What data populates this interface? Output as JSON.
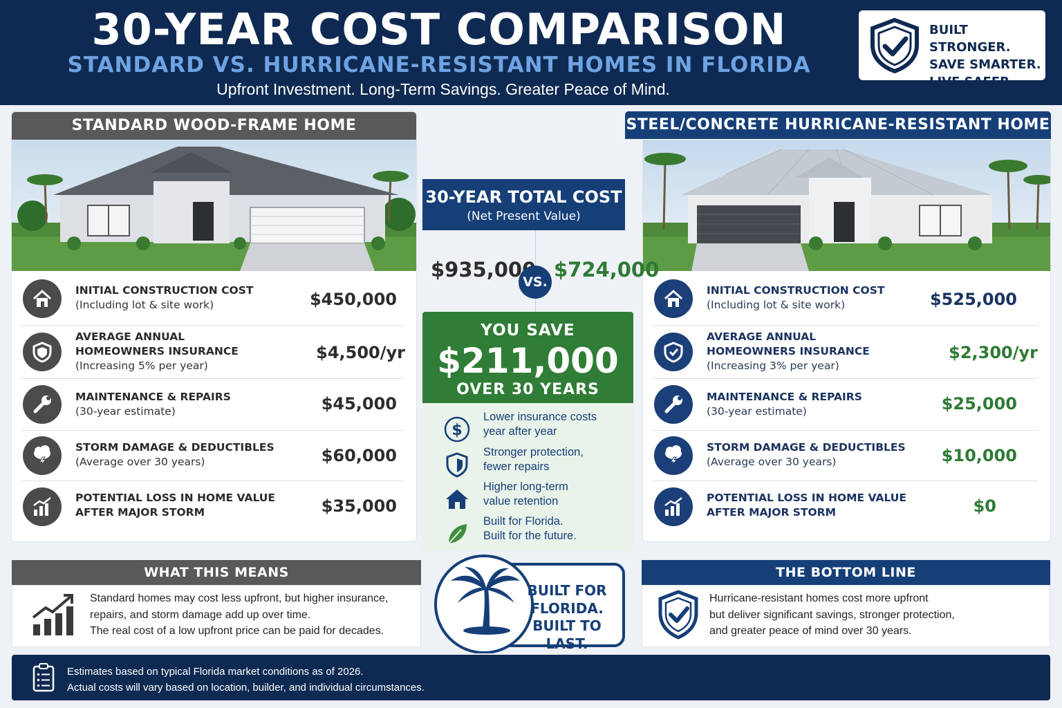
{
  "header": {
    "title": "30-YEAR COST COMPARISON",
    "subtitle": "STANDARD VS. HURRICANE-RESISTANT HOMES IN FLORIDA",
    "tagline": "Upfront Investment. Long-Term Savings.  Greater Peace of Mind.",
    "badge_lines": [
      "BUILT STRONGER.",
      "SAVE SMARTER.",
      "LIVE SAFER."
    ],
    "badge_icon": "shield-check-icon"
  },
  "standard": {
    "heading": "STANDARD WOOD-FRAME HOME",
    "rows": [
      {
        "label": "INITIAL CONSTRUCTION COST",
        "sublabel": "(Including lot & site work)",
        "value": "$450,000",
        "icon": "house-icon"
      },
      {
        "label": "AVERAGE ANNUAL",
        "label2": "HOMEOWNERS INSURANCE",
        "sublabel": "(Increasing 5% per year)",
        "value": "$4,500/yr",
        "icon": "shield-icon"
      },
      {
        "label": "MAINTENANCE & REPAIRS",
        "sublabel": "(30-year estimate)",
        "value": "$45,000",
        "icon": "wrench-icon"
      },
      {
        "label": "STORM DAMAGE & DEDUCTIBLES",
        "sublabel": "(Average over 30 years)",
        "value": "$60,000",
        "icon": "storm-cloud-icon"
      },
      {
        "label": "POTENTIAL LOSS IN HOME VALUE",
        "label2": "AFTER MAJOR STORM",
        "value": "$35,000",
        "icon": "chart-icon"
      }
    ]
  },
  "resistant": {
    "heading": "STEEL/CONCRETE HURRICANE-RESISTANT HOME",
    "rows": [
      {
        "label": "INITIAL CONSTRUCTION COST",
        "sublabel": "(Including lot & site work)",
        "value": "$525,000",
        "icon": "house-icon"
      },
      {
        "label": "AVERAGE ANNUAL",
        "label2": "HOMEOWNERS INSURANCE",
        "sublabel": "(Increasing 3% per year)",
        "value": "$2,300/yr",
        "icon": "shield-icon"
      },
      {
        "label": "MAINTENANCE & REPAIRS",
        "sublabel": "(30-year estimate)",
        "value": "$25,000",
        "icon": "wrench-icon"
      },
      {
        "label": "STORM DAMAGE & DEDUCTIBLES",
        "sublabel": "(Average over 30 years)",
        "value": "$10,000",
        "icon": "storm-cloud-icon"
      },
      {
        "label": "POTENTIAL LOSS IN HOME VALUE",
        "label2": "AFTER MAJOR STORM",
        "value": "$0",
        "icon": "chart-icon"
      }
    ]
  },
  "center": {
    "heading": "30-YEAR TOTAL COST",
    "subheading": "(Net Present Value)",
    "standard_total": "$935,000",
    "vs": "VS.",
    "resistant_total": "$724,000",
    "save_label": "YOU SAVE",
    "save_amount": "$211,000",
    "save_period": "OVER 30 YEARS",
    "benefits": [
      {
        "line1": "Lower insurance costs",
        "line2": "year after year",
        "icon": "dollar-icon"
      },
      {
        "line1": "Stronger protection,",
        "line2": "fewer repairs",
        "icon": "shield-icon"
      },
      {
        "line1": "Higher long-term",
        "line2": "value retention",
        "icon": "house-icon"
      },
      {
        "line1": "Built for Florida.",
        "line2": "Built for the future.",
        "icon": "leaf-icon"
      }
    ]
  },
  "what_this_means": {
    "heading": "WHAT THIS MEANS",
    "lines": [
      "Standard homes may cost less upfront, but higher insurance,",
      "repairs, and storm damage add up over time.",
      "The real cost of a low upfront price can be paid for decades."
    ],
    "icon": "growth-chart-icon"
  },
  "florida_badge": {
    "lines": [
      "BUILT FOR",
      "FLORIDA.",
      "BUILT TO LAST."
    ],
    "icon": "palm-tree-icon"
  },
  "bottom_line": {
    "heading": "THE BOTTOM LINE",
    "lines": [
      "Hurricane-resistant homes cost more upfront",
      "but deliver significant savings, stronger protection,",
      "and greater peace of mind over 30 years."
    ],
    "icon": "shield-check-icon"
  },
  "footer": {
    "lines": [
      "Estimates based on typical Florida market conditions as of 2026.",
      "Actual costs will vary based on location, builder, and individual circumstances."
    ],
    "icon": "clipboard-icon"
  },
  "colors": {
    "navy": "#0f2a52",
    "blue": "#163f78",
    "green": "#2f7d36",
    "gray": "#58595b"
  }
}
